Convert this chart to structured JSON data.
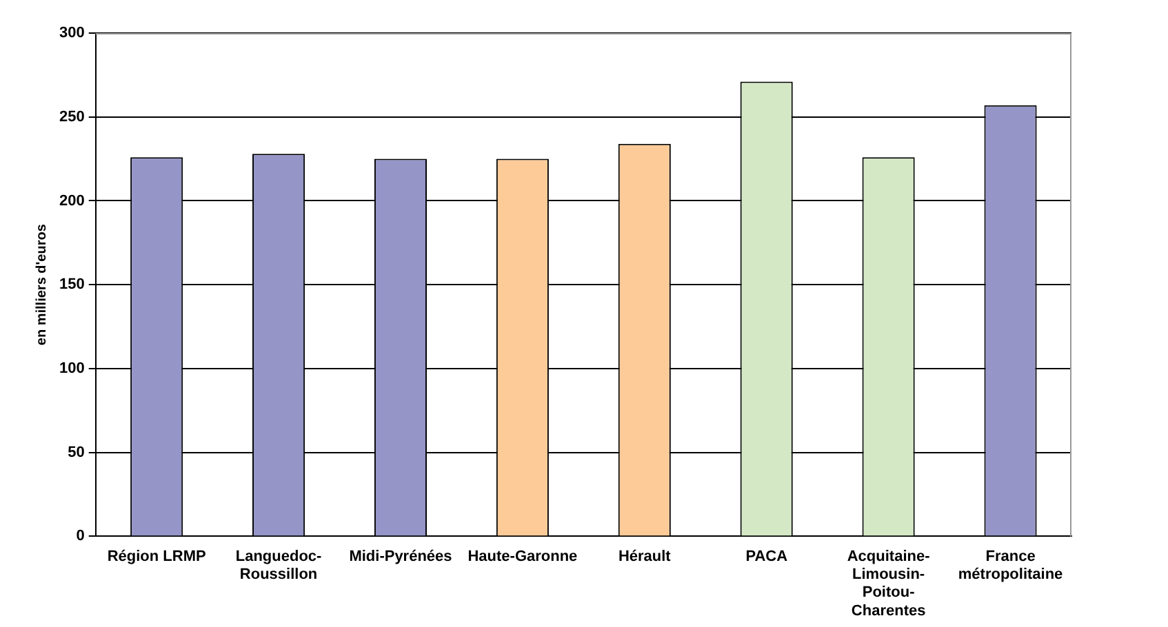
{
  "chart_data": {
    "type": "bar",
    "ylabel": "en milliers d'euros",
    "categories": [
      "Région LRMP",
      "Languedoc-Roussillon",
      "Midi-Pyrénées",
      "Haute-Garonne",
      "Hérault",
      "PACA",
      "Acquitaine-Limousin-Poitou-Charentes",
      "France métropolitaine"
    ],
    "values": [
      226,
      228,
      225,
      225,
      234,
      271,
      226,
      257
    ],
    "colors": [
      "#9595c8",
      "#9595c8",
      "#9595c8",
      "#fdcb98",
      "#fdcb98",
      "#d4e8c6",
      "#d4e8c6",
      "#9595c8"
    ],
    "ylim": [
      0,
      300
    ],
    "yticks": [
      0,
      50,
      100,
      150,
      200,
      250,
      300
    ],
    "grid": "y"
  }
}
